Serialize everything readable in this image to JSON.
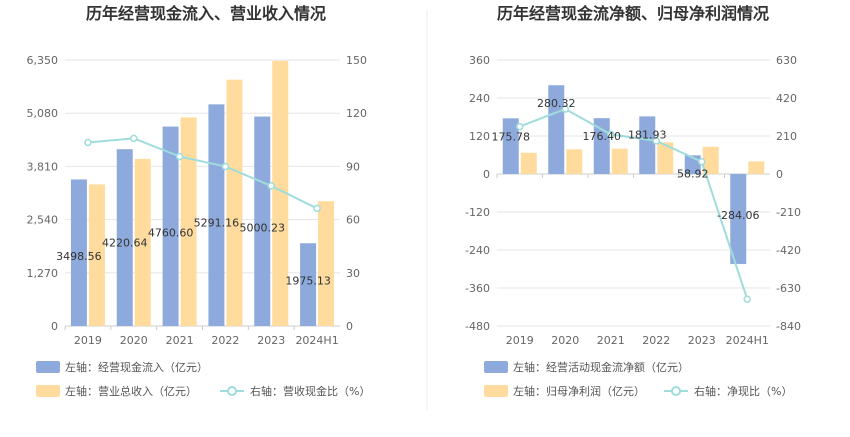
{
  "chart_data": [
    {
      "type": "bar",
      "title": "历年经营现金流入、营业收入情况",
      "categories": [
        "2019",
        "2020",
        "2021",
        "2022",
        "2023",
        "2024H1"
      ],
      "y_left": {
        "ticks": [
          "0",
          "1,270",
          "2,540",
          "3,810",
          "5,080",
          "6,350"
        ],
        "range": [
          0,
          6350
        ]
      },
      "y_right": {
        "ticks": [
          "0",
          "30",
          "60",
          "90",
          "120",
          "150"
        ],
        "range": [
          0,
          150
        ]
      },
      "series": [
        {
          "name": "左轴：经营现金流入（亿元）",
          "axis": "left",
          "type": "bar",
          "color": "#8eaadc",
          "values": [
            3498.56,
            4220.64,
            4760.6,
            5291.16,
            5000.23,
            1975.13
          ],
          "labels": [
            "3498.56",
            "4220.64",
            "4760.60",
            "5291.16",
            "5000.23",
            "1975.13"
          ]
        },
        {
          "name": "左轴：营业总收入（亿元）",
          "axis": "left",
          "type": "bar",
          "color": "#ffdc9e",
          "values": [
            3380,
            3990,
            4980,
            5880,
            6330,
            2980
          ]
        },
        {
          "name": "右轴：营收现金比（%）",
          "axis": "right",
          "type": "line",
          "color": "#9fdcdc",
          "values": [
            103.5,
            105.8,
            95.6,
            89.9,
            79.0,
            66.3
          ]
        }
      ]
    },
    {
      "type": "bar",
      "title": "历年经营现金流净额、归母净利润情况",
      "categories": [
        "2019",
        "2020",
        "2021",
        "2022",
        "2023",
        "2024H1"
      ],
      "y_left": {
        "ticks": [
          "-480",
          "-360",
          "-240",
          "-120",
          "0",
          "120",
          "240",
          "360"
        ],
        "range": [
          -480,
          360
        ]
      },
      "y_right": {
        "ticks": [
          "-840",
          "-630",
          "-420",
          "-210",
          "0",
          "210",
          "420",
          "630"
        ],
        "range": [
          -840,
          630
        ]
      },
      "series": [
        {
          "name": "左轴：经营活动现金流净额（亿元）",
          "axis": "left",
          "type": "bar",
          "color": "#8eaadc",
          "values": [
            175.78,
            280.32,
            176.4,
            181.93,
            58.92,
            -284.06
          ],
          "labels": [
            "175.78",
            "280.32",
            "176.40",
            "181.93",
            "58.92",
            "-284.06"
          ]
        },
        {
          "name": "左轴：归母净利润（亿元）",
          "axis": "left",
          "type": "bar",
          "color": "#ffdc9e",
          "values": [
            67,
            78,
            80,
            100,
            86,
            40
          ]
        },
        {
          "name": "右轴：净现比（%）",
          "axis": "right",
          "type": "line",
          "color": "#9fdcdc",
          "values": [
            262,
            359,
            219,
            183,
            68,
            -692
          ]
        }
      ]
    }
  ]
}
